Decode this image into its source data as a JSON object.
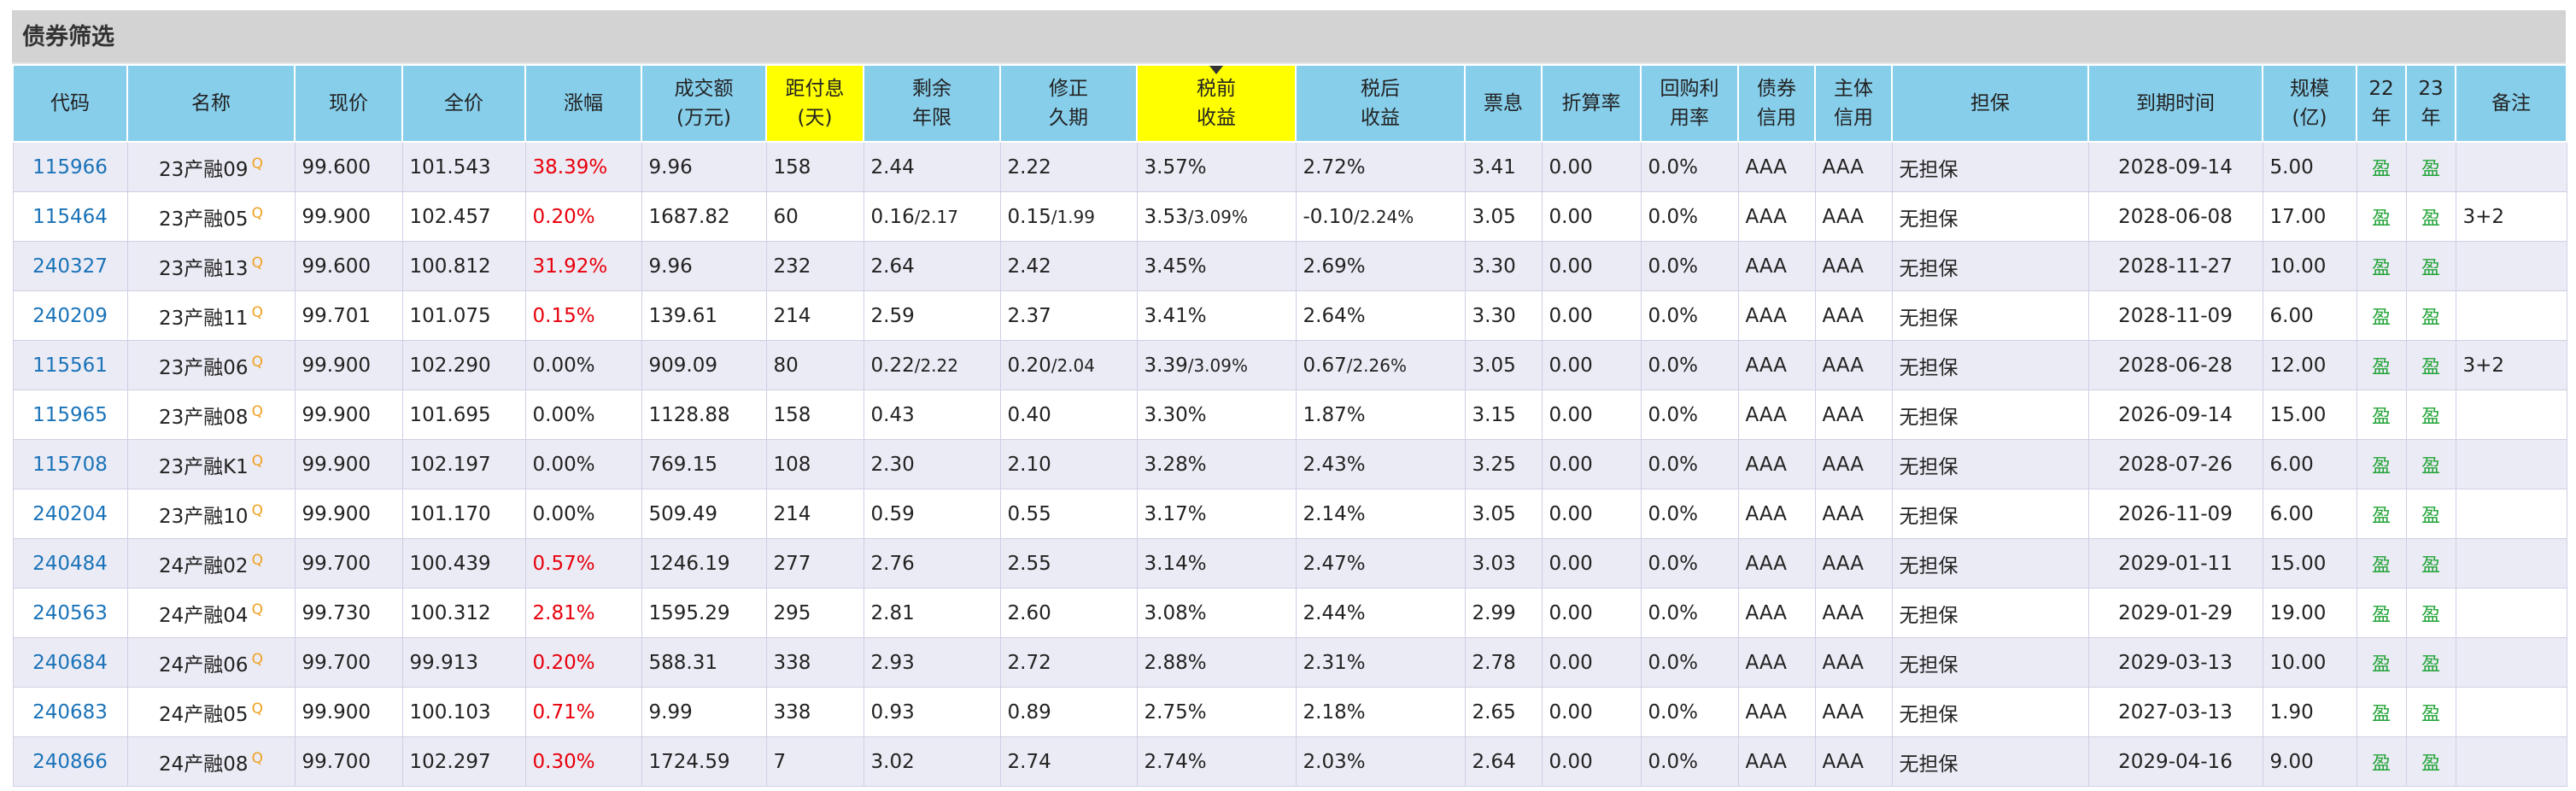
{
  "panel": {
    "title": "债券筛选"
  },
  "columns": [
    {
      "l1": "代码",
      "l2": ""
    },
    {
      "l1": "名称",
      "l2": ""
    },
    {
      "l1": "现价",
      "l2": ""
    },
    {
      "l1": "全价",
      "l2": ""
    },
    {
      "l1": "涨幅",
      "l2": ""
    },
    {
      "l1": "成交额",
      "l2": "(万元)"
    },
    {
      "l1": "距付息",
      "l2": "(天)"
    },
    {
      "l1": "剩余",
      "l2": "年限"
    },
    {
      "l1": "修正",
      "l2": "久期"
    },
    {
      "l1": "税前",
      "l2": "收益"
    },
    {
      "l1": "税后",
      "l2": "收益"
    },
    {
      "l1": "票息",
      "l2": ""
    },
    {
      "l1": "折算率",
      "l2": ""
    },
    {
      "l1": "回购利",
      "l2": "用率"
    },
    {
      "l1": "债券",
      "l2": "信用"
    },
    {
      "l1": "主体",
      "l2": "信用"
    },
    {
      "l1": "担保",
      "l2": ""
    },
    {
      "l1": "到期时间",
      "l2": ""
    },
    {
      "l1": "规模",
      "l2": "(亿)"
    },
    {
      "l1": "22",
      "l2": "年"
    },
    {
      "l1": "23",
      "l2": "年"
    },
    {
      "l1": "备注",
      "l2": ""
    }
  ],
  "highlighted_columns": [
    "距付息",
    "税前"
  ],
  "sorted_column": "税前",
  "name_icon": "q-link-icon",
  "colors": {
    "header_bg": "#87CEEB",
    "highlight": "#ffff00",
    "up": "#e8000b",
    "link": "#1a73b8",
    "ying": "#21a336"
  },
  "rows": [
    {
      "code": "115966",
      "name": "23产融09",
      "q": "Q",
      "price": "99.600",
      "full": "101.543",
      "chg": "38.39%",
      "up": true,
      "amt": "9.96",
      "days": "158",
      "rem": "2.44",
      "rem2": "",
      "dur": "2.22",
      "dur2": "",
      "pre": "3.57%",
      "pre2": "",
      "post": "2.72%",
      "post2": "",
      "coupon": "3.41",
      "conv": "0.00",
      "repo": "0.0%",
      "bond": "AAA",
      "issuer": "AAA",
      "guar": "无担保",
      "mat": "2028-09-14",
      "size": "5.00",
      "y22": "盈",
      "y23": "盈",
      "note": ""
    },
    {
      "code": "115464",
      "name": "23产融05",
      "q": "Q",
      "price": "99.900",
      "full": "102.457",
      "chg": "0.20%",
      "up": true,
      "amt": "1687.82",
      "days": "60",
      "rem": "0.16",
      "rem2": "/2.17",
      "dur": "0.15",
      "dur2": "/1.99",
      "pre": "3.53",
      "pre2": "/3.09%",
      "post": "-0.10",
      "post2": "/2.24%",
      "coupon": "3.05",
      "conv": "0.00",
      "repo": "0.0%",
      "bond": "AAA",
      "issuer": "AAA",
      "guar": "无担保",
      "mat": "2028-06-08",
      "size": "17.00",
      "y22": "盈",
      "y23": "盈",
      "note": "3+2"
    },
    {
      "code": "240327",
      "name": "23产融13",
      "q": "Q",
      "price": "99.600",
      "full": "100.812",
      "chg": "31.92%",
      "up": true,
      "amt": "9.96",
      "days": "232",
      "rem": "2.64",
      "rem2": "",
      "dur": "2.42",
      "dur2": "",
      "pre": "3.45%",
      "pre2": "",
      "post": "2.69%",
      "post2": "",
      "coupon": "3.30",
      "conv": "0.00",
      "repo": "0.0%",
      "bond": "AAA",
      "issuer": "AAA",
      "guar": "无担保",
      "mat": "2028-11-27",
      "size": "10.00",
      "y22": "盈",
      "y23": "盈",
      "note": ""
    },
    {
      "code": "240209",
      "name": "23产融11",
      "q": "Q",
      "price": "99.701",
      "full": "101.075",
      "chg": "0.15%",
      "up": true,
      "amt": "139.61",
      "days": "214",
      "rem": "2.59",
      "rem2": "",
      "dur": "2.37",
      "dur2": "",
      "pre": "3.41%",
      "pre2": "",
      "post": "2.64%",
      "post2": "",
      "coupon": "3.30",
      "conv": "0.00",
      "repo": "0.0%",
      "bond": "AAA",
      "issuer": "AAA",
      "guar": "无担保",
      "mat": "2028-11-09",
      "size": "6.00",
      "y22": "盈",
      "y23": "盈",
      "note": ""
    },
    {
      "code": "115561",
      "name": "23产融06",
      "q": "Q",
      "price": "99.900",
      "full": "102.290",
      "chg": "0.00%",
      "up": false,
      "amt": "909.09",
      "days": "80",
      "rem": "0.22",
      "rem2": "/2.22",
      "dur": "0.20",
      "dur2": "/2.04",
      "pre": "3.39",
      "pre2": "/3.09%",
      "post": "0.67",
      "post2": "/2.26%",
      "coupon": "3.05",
      "conv": "0.00",
      "repo": "0.0%",
      "bond": "AAA",
      "issuer": "AAA",
      "guar": "无担保",
      "mat": "2028-06-28",
      "size": "12.00",
      "y22": "盈",
      "y23": "盈",
      "note": "3+2"
    },
    {
      "code": "115965",
      "name": "23产融08",
      "q": "Q",
      "price": "99.900",
      "full": "101.695",
      "chg": "0.00%",
      "up": false,
      "amt": "1128.88",
      "days": "158",
      "rem": "0.43",
      "rem2": "",
      "dur": "0.40",
      "dur2": "",
      "pre": "3.30%",
      "pre2": "",
      "post": "1.87%",
      "post2": "",
      "coupon": "3.15",
      "conv": "0.00",
      "repo": "0.0%",
      "bond": "AAA",
      "issuer": "AAA",
      "guar": "无担保",
      "mat": "2026-09-14",
      "size": "15.00",
      "y22": "盈",
      "y23": "盈",
      "note": ""
    },
    {
      "code": "115708",
      "name": "23产融K1",
      "q": "Q",
      "price": "99.900",
      "full": "102.197",
      "chg": "0.00%",
      "up": false,
      "amt": "769.15",
      "days": "108",
      "rem": "2.30",
      "rem2": "",
      "dur": "2.10",
      "dur2": "",
      "pre": "3.28%",
      "pre2": "",
      "post": "2.43%",
      "post2": "",
      "coupon": "3.25",
      "conv": "0.00",
      "repo": "0.0%",
      "bond": "AAA",
      "issuer": "AAA",
      "guar": "无担保",
      "mat": "2028-07-26",
      "size": "6.00",
      "y22": "盈",
      "y23": "盈",
      "note": ""
    },
    {
      "code": "240204",
      "name": "23产融10",
      "q": "Q",
      "price": "99.900",
      "full": "101.170",
      "chg": "0.00%",
      "up": false,
      "amt": "509.49",
      "days": "214",
      "rem": "0.59",
      "rem2": "",
      "dur": "0.55",
      "dur2": "",
      "pre": "3.17%",
      "pre2": "",
      "post": "2.14%",
      "post2": "",
      "coupon": "3.05",
      "conv": "0.00",
      "repo": "0.0%",
      "bond": "AAA",
      "issuer": "AAA",
      "guar": "无担保",
      "mat": "2026-11-09",
      "size": "6.00",
      "y22": "盈",
      "y23": "盈",
      "note": ""
    },
    {
      "code": "240484",
      "name": "24产融02",
      "q": "Q",
      "price": "99.700",
      "full": "100.439",
      "chg": "0.57%",
      "up": true,
      "amt": "1246.19",
      "days": "277",
      "rem": "2.76",
      "rem2": "",
      "dur": "2.55",
      "dur2": "",
      "pre": "3.14%",
      "pre2": "",
      "post": "2.47%",
      "post2": "",
      "coupon": "3.03",
      "conv": "0.00",
      "repo": "0.0%",
      "bond": "AAA",
      "issuer": "AAA",
      "guar": "无担保",
      "mat": "2029-01-11",
      "size": "15.00",
      "y22": "盈",
      "y23": "盈",
      "note": ""
    },
    {
      "code": "240563",
      "name": "24产融04",
      "q": "Q",
      "price": "99.730",
      "full": "100.312",
      "chg": "2.81%",
      "up": true,
      "amt": "1595.29",
      "days": "295",
      "rem": "2.81",
      "rem2": "",
      "dur": "2.60",
      "dur2": "",
      "pre": "3.08%",
      "pre2": "",
      "post": "2.44%",
      "post2": "",
      "coupon": "2.99",
      "conv": "0.00",
      "repo": "0.0%",
      "bond": "AAA",
      "issuer": "AAA",
      "guar": "无担保",
      "mat": "2029-01-29",
      "size": "19.00",
      "y22": "盈",
      "y23": "盈",
      "note": ""
    },
    {
      "code": "240684",
      "name": "24产融06",
      "q": "Q",
      "price": "99.700",
      "full": "99.913",
      "chg": "0.20%",
      "up": true,
      "amt": "588.31",
      "days": "338",
      "rem": "2.93",
      "rem2": "",
      "dur": "2.72",
      "dur2": "",
      "pre": "2.88%",
      "pre2": "",
      "post": "2.31%",
      "post2": "",
      "coupon": "2.78",
      "conv": "0.00",
      "repo": "0.0%",
      "bond": "AAA",
      "issuer": "AAA",
      "guar": "无担保",
      "mat": "2029-03-13",
      "size": "10.00",
      "y22": "盈",
      "y23": "盈",
      "note": ""
    },
    {
      "code": "240683",
      "name": "24产融05",
      "q": "Q",
      "price": "99.900",
      "full": "100.103",
      "chg": "0.71%",
      "up": true,
      "amt": "9.99",
      "days": "338",
      "rem": "0.93",
      "rem2": "",
      "dur": "0.89",
      "dur2": "",
      "pre": "2.75%",
      "pre2": "",
      "post": "2.18%",
      "post2": "",
      "coupon": "2.65",
      "conv": "0.00",
      "repo": "0.0%",
      "bond": "AAA",
      "issuer": "AAA",
      "guar": "无担保",
      "mat": "2027-03-13",
      "size": "1.90",
      "y22": "盈",
      "y23": "盈",
      "note": ""
    },
    {
      "code": "240866",
      "name": "24产融08",
      "q": "Q",
      "price": "99.700",
      "full": "102.297",
      "chg": "0.30%",
      "up": true,
      "amt": "1724.59",
      "days": "7",
      "rem": "3.02",
      "rem2": "",
      "dur": "2.74",
      "dur2": "",
      "pre": "2.74%",
      "pre2": "",
      "post": "2.03%",
      "post2": "",
      "coupon": "2.64",
      "conv": "0.00",
      "repo": "0.0%",
      "bond": "AAA",
      "issuer": "AAA",
      "guar": "无担保",
      "mat": "2029-04-16",
      "size": "9.00",
      "y22": "盈",
      "y23": "盈",
      "note": ""
    }
  ]
}
